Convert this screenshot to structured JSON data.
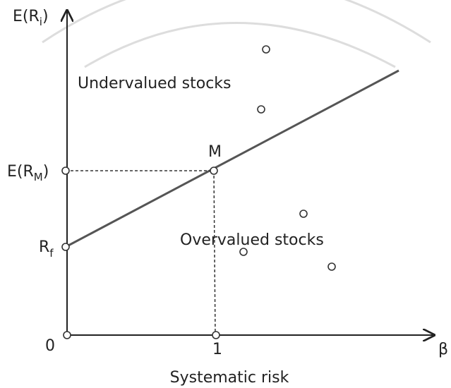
{
  "y_axis": {
    "label": {
      "main": "E(R",
      "sub": "i",
      "tail": ")"
    }
  },
  "x_axis": {
    "label": "β",
    "caption": "Systematic risk"
  },
  "ticks": {
    "origin": "0",
    "beta_one": "1",
    "market_return": {
      "main": "E(R",
      "sub": "M",
      "tail": ")"
    },
    "risk_free": {
      "main": "R",
      "sub": "f"
    }
  },
  "market_point": "M",
  "regions": {
    "above": "Undervalued stocks",
    "below": "Overvalued stocks"
  }
}
